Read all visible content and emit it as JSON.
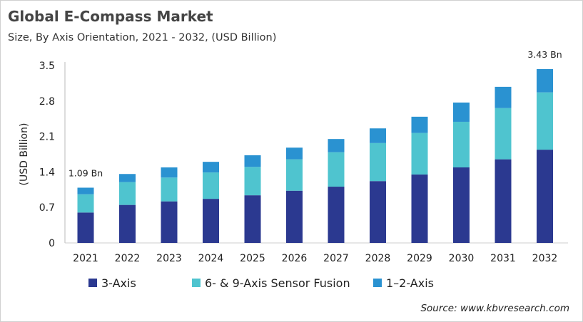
{
  "chart_data": {
    "type": "bar",
    "stacked": true,
    "title": "Global E-Compass Market",
    "subtitle": "Size, By Axis Orientation, 2021 - 2032, (USD Billion)",
    "xlabel": "",
    "ylabel": "(USD Billion)",
    "ylim": [
      0,
      3.5
    ],
    "yticks": [
      "0",
      "0.7",
      "1.4",
      "2.1",
      "2.8",
      "3.5"
    ],
    "grid": false,
    "legend_position": "bottom",
    "categories": [
      "2021",
      "2022",
      "2023",
      "2024",
      "2025",
      "2026",
      "2027",
      "2028",
      "2029",
      "2030",
      "2031",
      "2032"
    ],
    "series": [
      {
        "name": "3-Axis",
        "color": "#2b3990",
        "values": [
          0.6,
          0.75,
          0.82,
          0.87,
          0.94,
          1.03,
          1.11,
          1.22,
          1.35,
          1.49,
          1.65,
          1.84
        ]
      },
      {
        "name": "6- & 9-Axis Sensor Fusion",
        "color": "#4fc4cf",
        "values": [
          0.36,
          0.45,
          0.47,
          0.52,
          0.56,
          0.62,
          0.68,
          0.75,
          0.82,
          0.9,
          1.01,
          1.13
        ]
      },
      {
        "name": "1–2-Axis",
        "color": "#2a92d1",
        "values": [
          0.13,
          0.16,
          0.2,
          0.21,
          0.23,
          0.23,
          0.26,
          0.29,
          0.32,
          0.38,
          0.42,
          0.46
        ]
      }
    ],
    "annotations": [
      {
        "category": "2021",
        "text": "1.09 Bn"
      },
      {
        "category": "2032",
        "text": "3.43 Bn"
      }
    ]
  },
  "source": "Source: www.kbvresearch.com"
}
